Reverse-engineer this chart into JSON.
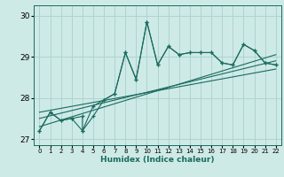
{
  "xlabel": "Humidex (Indice chaleur)",
  "bg_color": "#ceeae7",
  "line_color": "#1a6b5e",
  "grid_color": "#aed4cf",
  "xlim": [
    -0.5,
    22.5
  ],
  "ylim": [
    26.85,
    30.25
  ],
  "yticks": [
    27,
    28,
    29,
    30
  ],
  "xtick_labels": [
    "0",
    "1",
    "2",
    "3",
    "4",
    "5",
    "6",
    "7",
    "8",
    "9",
    "10",
    "11",
    "12",
    "13",
    "14",
    "15",
    "16",
    "17",
    "18",
    "19",
    "20",
    "21",
    "22"
  ],
  "series1_x": [
    0,
    1,
    2,
    3,
    4,
    5,
    6,
    7,
    8,
    9,
    10,
    11,
    12,
    13,
    14,
    15,
    16,
    17,
    18,
    19,
    20,
    21,
    22
  ],
  "series1_y": [
    27.2,
    27.65,
    27.45,
    27.5,
    27.2,
    27.55,
    27.95,
    28.1,
    29.1,
    28.45,
    29.85,
    28.8,
    29.25,
    29.05,
    29.1,
    29.1,
    29.1,
    28.85,
    28.8,
    29.3,
    29.15,
    28.85,
    28.8
  ],
  "series2_x": [
    0,
    1,
    2,
    3,
    4,
    4,
    5,
    6,
    7,
    8,
    9,
    10,
    11,
    12,
    13,
    14,
    15,
    16,
    17,
    18,
    19,
    20,
    21,
    22
  ],
  "series2_y": [
    27.2,
    27.65,
    27.45,
    27.5,
    27.55,
    27.2,
    27.8,
    27.95,
    28.1,
    29.1,
    28.45,
    29.85,
    28.8,
    29.25,
    29.05,
    29.1,
    29.1,
    29.1,
    28.85,
    28.8,
    29.3,
    29.15,
    28.85,
    28.8
  ],
  "reg_line1_x": [
    0,
    22
  ],
  "reg_line1_y": [
    27.3,
    29.05
  ],
  "reg_line2_x": [
    0,
    22
  ],
  "reg_line2_y": [
    27.5,
    28.9
  ],
  "reg_line3_x": [
    0,
    22
  ],
  "reg_line3_y": [
    27.65,
    28.7
  ]
}
